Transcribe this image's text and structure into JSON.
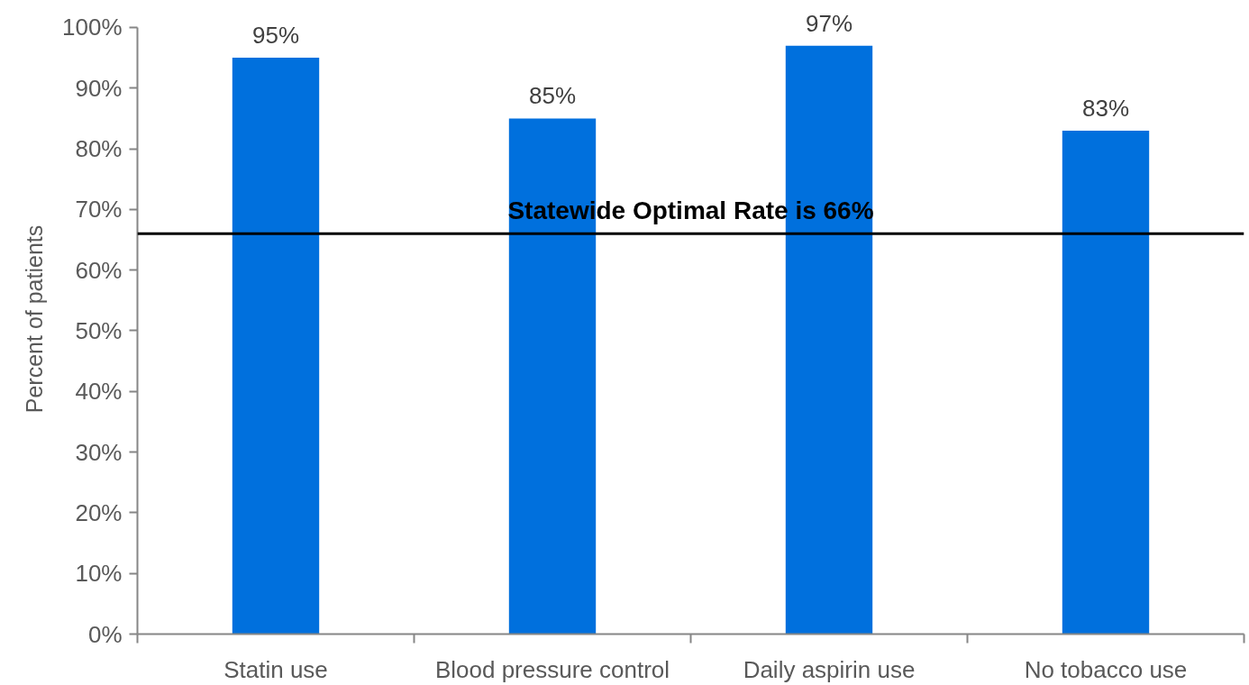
{
  "chart_data": {
    "type": "bar",
    "categories": [
      "Statin use",
      "Blood pressure control",
      "Daily aspirin use",
      "No tobacco use"
    ],
    "values": [
      95,
      85,
      97,
      83
    ],
    "value_labels": [
      "95%",
      "85%",
      "97%",
      "83%"
    ],
    "color": "#0070dd",
    "ylabel": "Percent of patients",
    "ylim": [
      0,
      100
    ],
    "yticks": [
      {
        "value": 0,
        "label": "0%"
      },
      {
        "value": 10,
        "label": "10%"
      },
      {
        "value": 20,
        "label": "20%"
      },
      {
        "value": 30,
        "label": "30%"
      },
      {
        "value": 40,
        "label": "40%"
      },
      {
        "value": 50,
        "label": "50%"
      },
      {
        "value": 60,
        "label": "60%"
      },
      {
        "value": 70,
        "label": "70%"
      },
      {
        "value": 80,
        "label": "80%"
      },
      {
        "value": 90,
        "label": "90%"
      },
      {
        "value": 100,
        "label": "100%"
      }
    ],
    "ref_lines": [
      {
        "axis": "y",
        "value": 66,
        "label": "Statewide Optimal Rate is 66%",
        "color": "#000000"
      }
    ]
  }
}
